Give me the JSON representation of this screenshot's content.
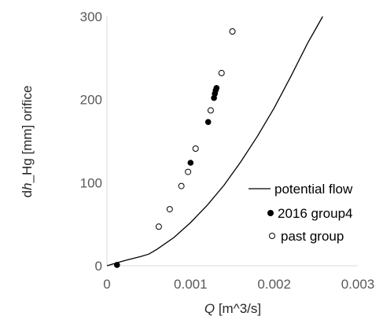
{
  "chart_data": {
    "type": "scatter",
    "title": "",
    "xlabel_var": "Q",
    "xlabel_unit": " [m^3/s]",
    "ylabel_prefix": "d",
    "ylabel_var": "h",
    "ylabel_suffix": "_Hg [mm] orifice",
    "xlim": [
      0,
      0.003
    ],
    "ylim": [
      0,
      300
    ],
    "x_ticks": [
      0,
      0.001,
      0.002,
      0.003
    ],
    "x_tick_labels": [
      "0",
      "0.001",
      "0.002",
      "0.003"
    ],
    "y_ticks": [
      0,
      100,
      200,
      300
    ],
    "y_tick_labels": [
      "0",
      "100",
      "200",
      "300"
    ],
    "grid": false,
    "legend_position": "bottom-right",
    "series": [
      {
        "name": "potential flow",
        "kind": "line",
        "color": "#000000",
        "x": [
          0,
          0.0002,
          0.0004,
          0.0005,
          0.0006,
          0.0008,
          0.001,
          0.0012,
          0.0014,
          0.0016,
          0.0018,
          0.002,
          0.0022,
          0.0024,
          0.00258
        ],
        "y": [
          0,
          6,
          11,
          14,
          20,
          34,
          52,
          73,
          97,
          125,
          156,
          190,
          228,
          268,
          300
        ]
      },
      {
        "name": "2016 group4",
        "kind": "filled-marker",
        "color": "#000000",
        "x": [
          0.00012,
          0.001,
          0.00121,
          0.00128,
          0.00129,
          0.0013,
          0.00131
        ],
        "y": [
          1,
          124,
          173,
          202,
          207,
          211,
          214
        ]
      },
      {
        "name": "past group",
        "kind": "open-marker",
        "color": "#000000",
        "x": [
          0.00062,
          0.00075,
          0.00089,
          0.00097,
          0.00106,
          0.00124,
          0.00137,
          0.0015
        ],
        "y": [
          47,
          68,
          96,
          113,
          141,
          187,
          232,
          282
        ]
      }
    ]
  }
}
